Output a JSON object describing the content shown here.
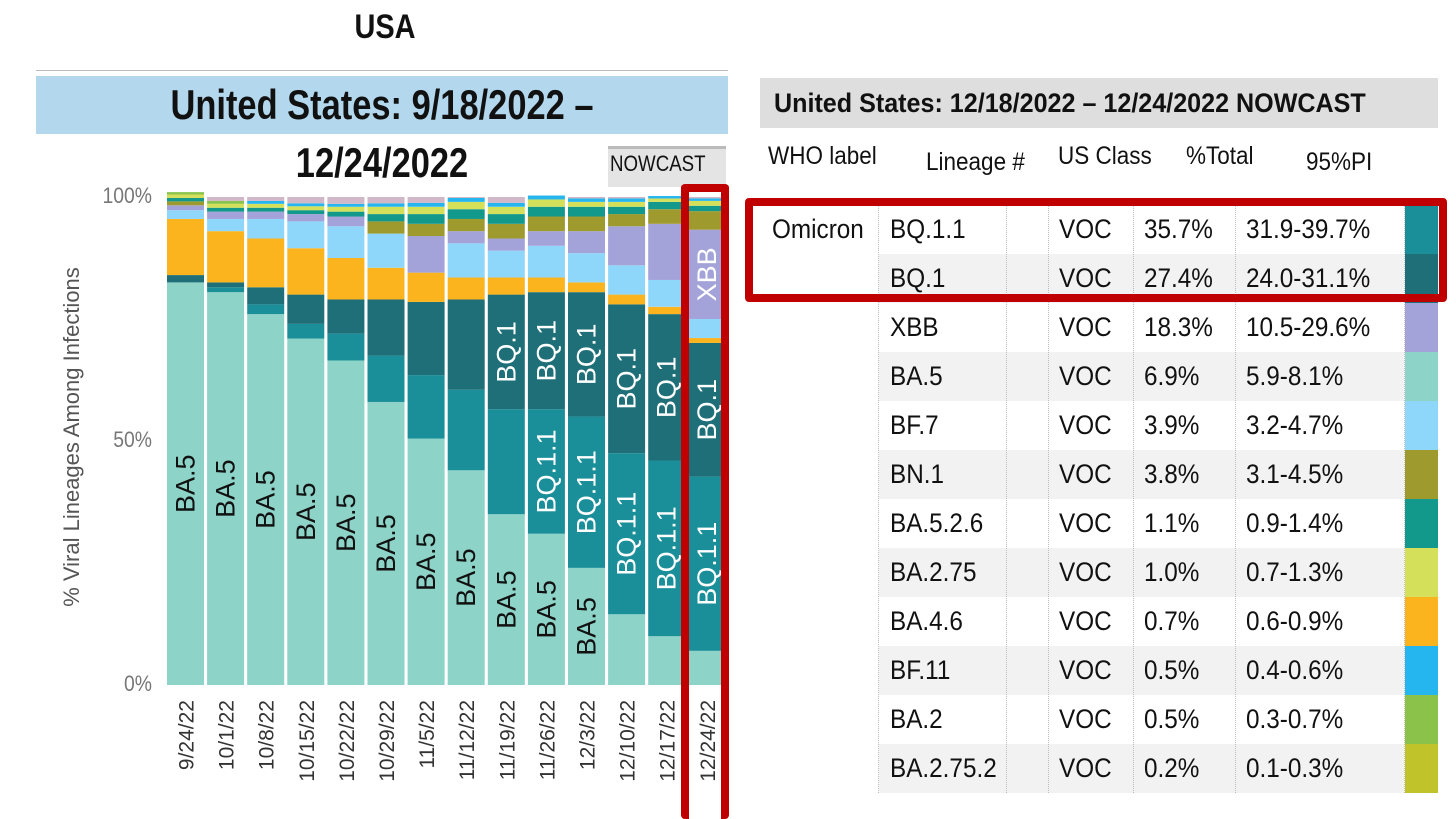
{
  "header": {
    "title": "USA"
  },
  "left_panel": {
    "banner": "United States: 9/18/2022 – 12/24/2022",
    "nowcast_label": "NOWCAST"
  },
  "chart_data": {
    "type": "bar",
    "stacked": true,
    "ylabel": "% Viral Lineages Among Infections",
    "ytick_labels": [
      "100%",
      "50%",
      "0%"
    ],
    "ylim": [
      0,
      100
    ],
    "categories": [
      "9/24/22",
      "10/1/22",
      "10/8/22",
      "10/15/22",
      "10/22/22",
      "10/29/22",
      "11/5/22",
      "11/12/22",
      "11/19/22",
      "11/26/22",
      "12/3/22",
      "12/10/22",
      "12/17/22",
      "12/24/22"
    ],
    "nowcast_categories": [
      "12/10/22",
      "12/17/22",
      "12/24/22"
    ],
    "highlighted_category": "12/24/22",
    "series": [
      {
        "name": "BA.5",
        "color": "#8dd3c7",
        "values": [
          82.5,
          80.5,
          76,
          71,
          66.5,
          58,
          50.5,
          44,
          35,
          31,
          24,
          14.5,
          10,
          7
        ]
      },
      {
        "name": "BQ.1.1",
        "color": "#1a8f9a",
        "values": [
          0,
          0,
          0,
          0,
          0,
          0,
          0,
          0,
          0,
          0,
          0,
          0,
          0,
          35.7
        ]
      },
      {
        "name": "BQ.1",
        "color": "#1e6f78",
        "values": [
          0,
          0,
          0,
          0,
          0,
          0,
          0,
          0,
          0,
          0,
          0,
          0,
          0,
          27.4
        ]
      },
      {
        "name": "XBB",
        "color": "#a3a3d9",
        "values": [
          0,
          0,
          0,
          0,
          0,
          0,
          0,
          0,
          0,
          0,
          0,
          0,
          0,
          18.3
        ]
      }
    ],
    "bar_segments": [
      [
        [
          82.5,
          "#8dd3c7"
        ],
        [
          1.5,
          "#1e6f78"
        ],
        [
          11.5,
          "#fbb41d"
        ],
        [
          1.8,
          "#8fd7fa"
        ],
        [
          1,
          "#a3a3d9"
        ],
        [
          0.8,
          "#9f9a2e"
        ],
        [
          0.7,
          "#13998b"
        ],
        [
          0.7,
          "#d4e05a"
        ],
        [
          0.5,
          "#8bc34a"
        ]
      ],
      [
        [
          80.5,
          "#8dd3c7"
        ],
        [
          1,
          "#1a8f9a"
        ],
        [
          1,
          "#1e6f78"
        ],
        [
          10.5,
          "#fbb41d"
        ],
        [
          2.5,
          "#8fd7fa"
        ],
        [
          1.5,
          "#a3a3d9"
        ],
        [
          0.8,
          "#13998b"
        ],
        [
          0.8,
          "#d4e05a"
        ],
        [
          0.6,
          "#8bc34a"
        ]
      ],
      [
        [
          76,
          "#8dd3c7"
        ],
        [
          2,
          "#1a8f9a"
        ],
        [
          3.5,
          "#1e6f78"
        ],
        [
          10,
          "#fbb41d"
        ],
        [
          4,
          "#8fd7fa"
        ],
        [
          1.5,
          "#a3a3d9"
        ],
        [
          0.8,
          "#13998b"
        ],
        [
          0.8,
          "#d4e05a"
        ],
        [
          0.6,
          "#25b6f0"
        ]
      ],
      [
        [
          71,
          "#8dd3c7"
        ],
        [
          3,
          "#1a8f9a"
        ],
        [
          6,
          "#1e6f78"
        ],
        [
          9.5,
          "#fbb41d"
        ],
        [
          5.5,
          "#8fd7fa"
        ],
        [
          1.5,
          "#a3a3d9"
        ],
        [
          0.8,
          "#13998b"
        ],
        [
          0.8,
          "#d4e05a"
        ],
        [
          0.6,
          "#25b6f0"
        ]
      ],
      [
        [
          66.5,
          "#8dd3c7"
        ],
        [
          5.5,
          "#1a8f9a"
        ],
        [
          7,
          "#1e6f78"
        ],
        [
          8.5,
          "#fbb41d"
        ],
        [
          6.5,
          "#8fd7fa"
        ],
        [
          2,
          "#a3a3d9"
        ],
        [
          1,
          "#13998b"
        ],
        [
          1,
          "#d4e05a"
        ],
        [
          0.6,
          "#25b6f0"
        ]
      ],
      [
        [
          58,
          "#8dd3c7"
        ],
        [
          9.5,
          "#1a8f9a"
        ],
        [
          11.5,
          "#1e6f78"
        ],
        [
          6.5,
          "#fbb41d"
        ],
        [
          7,
          "#8fd7fa"
        ],
        [
          2.5,
          "#9f9a2e"
        ],
        [
          1.5,
          "#13998b"
        ],
        [
          1.5,
          "#d4e05a"
        ],
        [
          0.7,
          "#25b6f0"
        ]
      ],
      [
        [
          50.5,
          "#8dd3c7"
        ],
        [
          13,
          "#1a8f9a"
        ],
        [
          15,
          "#1e6f78"
        ],
        [
          6,
          "#fbb41d"
        ],
        [
          7.5,
          "#a3a3d9"
        ],
        [
          2.5,
          "#9f9a2e"
        ],
        [
          2,
          "#13998b"
        ],
        [
          1.5,
          "#d4e05a"
        ],
        [
          0.8,
          "#25b6f0"
        ]
      ],
      [
        [
          44,
          "#8dd3c7"
        ],
        [
          16.5,
          "#1a8f9a"
        ],
        [
          18.5,
          "#1e6f78"
        ],
        [
          4.5,
          "#fbb41d"
        ],
        [
          7,
          "#8fd7fa"
        ],
        [
          2.5,
          "#a3a3d9"
        ],
        [
          2.5,
          "#9f9a2e"
        ],
        [
          2,
          "#13998b"
        ],
        [
          1.5,
          "#d4e05a"
        ],
        [
          0.8,
          "#25b6f0"
        ]
      ],
      [
        [
          35,
          "#8dd3c7"
        ],
        [
          21.5,
          "#1a8f9a"
        ],
        [
          23.5,
          "#1e6f78"
        ],
        [
          3.5,
          "#fbb41d"
        ],
        [
          5.5,
          "#8fd7fa"
        ],
        [
          2.5,
          "#a3a3d9"
        ],
        [
          3,
          "#9f9a2e"
        ],
        [
          2,
          "#13998b"
        ],
        [
          1.5,
          "#d4e05a"
        ],
        [
          0.8,
          "#25b6f0"
        ]
      ],
      [
        [
          31,
          "#8dd3c7"
        ],
        [
          25.5,
          "#1a8f9a"
        ],
        [
          24,
          "#1e6f78"
        ],
        [
          3,
          "#fbb41d"
        ],
        [
          6.5,
          "#8fd7fa"
        ],
        [
          3,
          "#a3a3d9"
        ],
        [
          3,
          "#9f9a2e"
        ],
        [
          2,
          "#13998b"
        ],
        [
          1.5,
          "#d4e05a"
        ],
        [
          0.8,
          "#25b6f0"
        ]
      ],
      [
        [
          24,
          "#8dd3c7"
        ],
        [
          31,
          "#1a8f9a"
        ],
        [
          25.5,
          "#1e6f78"
        ],
        [
          2,
          "#fbb41d"
        ],
        [
          6,
          "#8fd7fa"
        ],
        [
          4.5,
          "#a3a3d9"
        ],
        [
          3,
          "#9f9a2e"
        ],
        [
          2,
          "#13998b"
        ],
        [
          1,
          "#d4e05a"
        ],
        [
          0.7,
          "#25b6f0"
        ]
      ],
      [
        [
          14.5,
          "#8dd3c7"
        ],
        [
          33,
          "#1a8f9a"
        ],
        [
          30.5,
          "#1e6f78"
        ],
        [
          2,
          "#fbb41d"
        ],
        [
          6,
          "#8fd7fa"
        ],
        [
          8,
          "#a3a3d9"
        ],
        [
          2.5,
          "#9f9a2e"
        ],
        [
          1.5,
          "#13998b"
        ],
        [
          1,
          "#d4e05a"
        ],
        [
          0.7,
          "#25b6f0"
        ]
      ],
      [
        [
          10,
          "#8dd3c7"
        ],
        [
          36,
          "#1a8f9a"
        ],
        [
          30,
          "#1e6f78"
        ],
        [
          1.5,
          "#fbb41d"
        ],
        [
          5.5,
          "#8fd7fa"
        ],
        [
          11.5,
          "#a3a3d9"
        ],
        [
          3,
          "#9f9a2e"
        ],
        [
          1.5,
          "#13998b"
        ],
        [
          0.7,
          "#d4e05a"
        ],
        [
          0.5,
          "#25b6f0"
        ]
      ],
      [
        [
          7,
          "#8dd3c7"
        ],
        [
          35.7,
          "#1a8f9a"
        ],
        [
          27.4,
          "#1e6f78"
        ],
        [
          1,
          "#fbb41d"
        ],
        [
          3.9,
          "#8fd7fa"
        ],
        [
          18.3,
          "#a3a3d9"
        ],
        [
          3.8,
          "#9f9a2e"
        ],
        [
          1.1,
          "#13998b"
        ],
        [
          1,
          "#d4e05a"
        ],
        [
          0.5,
          "#25b6f0"
        ]
      ]
    ],
    "bar_labels": [
      [
        "BA.5",
        "",
        "",
        "#111"
      ],
      [
        "BA.5",
        "",
        "",
        "#111"
      ],
      [
        "BA.5",
        "",
        "",
        "#111"
      ],
      [
        "BA.5",
        "",
        "",
        "#111"
      ],
      [
        "BA.5",
        "",
        "",
        "#111"
      ],
      [
        "BA.5",
        "",
        "",
        "#111"
      ],
      [
        "BA.5",
        "",
        "",
        "#111"
      ],
      [
        "BA.5",
        "",
        "",
        "#111"
      ],
      [
        "BA.5",
        "",
        "BQ.1",
        "mix"
      ],
      [
        "BA.5",
        "BQ.1.1",
        "BQ.1",
        "mix"
      ],
      [
        "BA.5",
        "BQ.1.1",
        "BQ.1",
        "mix"
      ],
      [
        "",
        "BQ.1.1",
        "BQ.1",
        "mix"
      ],
      [
        "",
        "BQ.1.1",
        "BQ.1",
        "mix"
      ],
      [
        "",
        "BQ.1.1",
        "BQ.1",
        "XBB"
      ]
    ]
  },
  "table": {
    "title": "United States: 12/18/2022 – 12/24/2022 NOWCAST",
    "columns": [
      "WHO label",
      "Lineage #",
      "US Class",
      "%Total",
      "95%PI"
    ],
    "rows": [
      {
        "who": "Omicron",
        "lineage": "BQ.1.1",
        "class": "VOC",
        "total": "35.7%",
        "pi": "31.9-39.7%",
        "color": "#1a8f9a"
      },
      {
        "who": "",
        "lineage": "BQ.1",
        "class": "VOC",
        "total": "27.4%",
        "pi": "24.0-31.1%",
        "color": "#1e6f78"
      },
      {
        "who": "",
        "lineage": "XBB",
        "class": "VOC",
        "total": "18.3%",
        "pi": "10.5-29.6%",
        "color": "#a3a3d9"
      },
      {
        "who": "",
        "lineage": "BA.5",
        "class": "VOC",
        "total": "6.9%",
        "pi": "5.9-8.1%",
        "color": "#8dd3c7"
      },
      {
        "who": "",
        "lineage": "BF.7",
        "class": "VOC",
        "total": "3.9%",
        "pi": "3.2-4.7%",
        "color": "#8fd7fa"
      },
      {
        "who": "",
        "lineage": "BN.1",
        "class": "VOC",
        "total": "3.8%",
        "pi": "3.1-4.5%",
        "color": "#9f9a2e"
      },
      {
        "who": "",
        "lineage": "BA.5.2.6",
        "class": "VOC",
        "total": "1.1%",
        "pi": "0.9-1.4%",
        "color": "#13998b"
      },
      {
        "who": "",
        "lineage": "BA.2.75",
        "class": "VOC",
        "total": "1.0%",
        "pi": "0.7-1.3%",
        "color": "#d4e05a"
      },
      {
        "who": "",
        "lineage": "BA.4.6",
        "class": "VOC",
        "total": "0.7%",
        "pi": "0.6-0.9%",
        "color": "#fbb41d"
      },
      {
        "who": "",
        "lineage": "BF.11",
        "class": "VOC",
        "total": "0.5%",
        "pi": "0.4-0.6%",
        "color": "#25b6f0"
      },
      {
        "who": "",
        "lineage": "BA.2",
        "class": "VOC",
        "total": "0.5%",
        "pi": "0.3-0.7%",
        "color": "#8bc34a"
      },
      {
        "who": "",
        "lineage": "BA.2.75.2",
        "class": "VOC",
        "total": "0.2%",
        "pi": "0.1-0.3%",
        "color": "#c0c42a"
      }
    ]
  },
  "colors": {
    "highlight": "#c00000",
    "banner_left": "#b3d8ee",
    "banner_right": "#dedede"
  }
}
